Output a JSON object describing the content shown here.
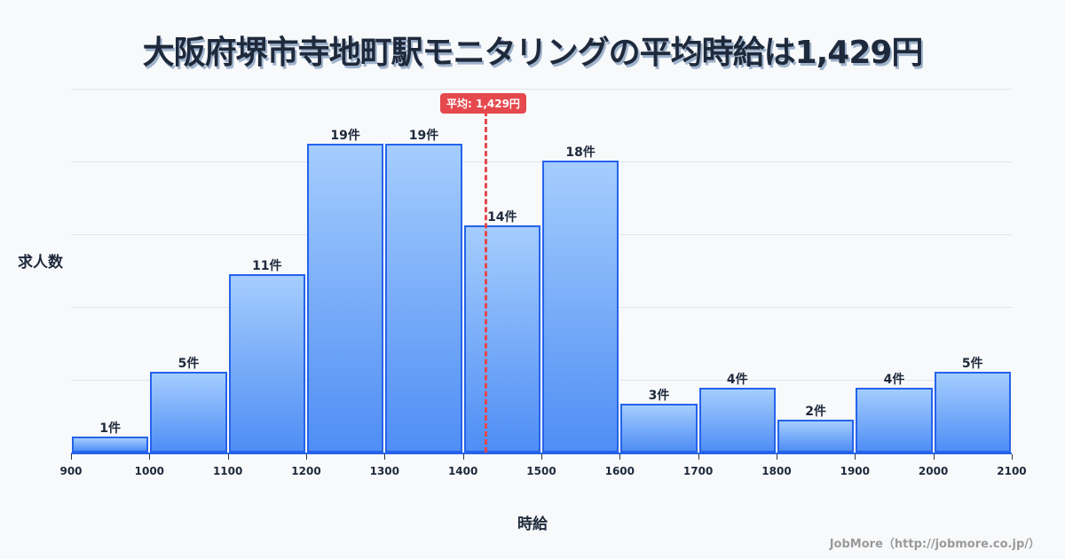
{
  "title": "大阪府堺市寺地町駅モニタリングの平均時給は1,429円",
  "y_axis_label": "求人数",
  "x_axis_label": "時給",
  "credit": "JobMore（http://jobmore.co.jp/）",
  "mean_badge": "平均: 1,429円",
  "colors": {
    "bar_fill_top": "#a5cdfd",
    "bar_fill_bottom": "#4f8ef5",
    "bar_border": "#2563eb",
    "mean_line": "#e5484d"
  },
  "bars": [
    {
      "label": "1件"
    },
    {
      "label": "5件"
    },
    {
      "label": "11件"
    },
    {
      "label": "19件"
    },
    {
      "label": "19件"
    },
    {
      "label": "14件"
    },
    {
      "label": "18件"
    },
    {
      "label": "3件"
    },
    {
      "label": "4件"
    },
    {
      "label": "2件"
    },
    {
      "label": "4件"
    },
    {
      "label": "5件"
    }
  ],
  "ticks": [
    "900",
    "1000",
    "1100",
    "1200",
    "1300",
    "1400",
    "1500",
    "1600",
    "1700",
    "1800",
    "1900",
    "2000",
    "2100"
  ],
  "chart_data": {
    "type": "bar",
    "title": "大阪府堺市寺地町駅モニタリングの平均時給は1,429円",
    "xlabel": "時給",
    "ylabel": "求人数",
    "bin_edges": [
      900,
      1000,
      1100,
      1200,
      1300,
      1400,
      1500,
      1600,
      1700,
      1800,
      1900,
      2000,
      2100
    ],
    "categories": [
      "900-1000",
      "1000-1100",
      "1100-1200",
      "1200-1300",
      "1300-1400",
      "1400-1500",
      "1500-1600",
      "1600-1700",
      "1700-1800",
      "1800-1900",
      "1900-2000",
      "2000-2100"
    ],
    "values": [
      1,
      5,
      11,
      19,
      19,
      14,
      18,
      3,
      4,
      2,
      4,
      5
    ],
    "mean": 1429,
    "annotations": [
      "平均: 1,429円"
    ],
    "grid": true,
    "legend": null
  }
}
